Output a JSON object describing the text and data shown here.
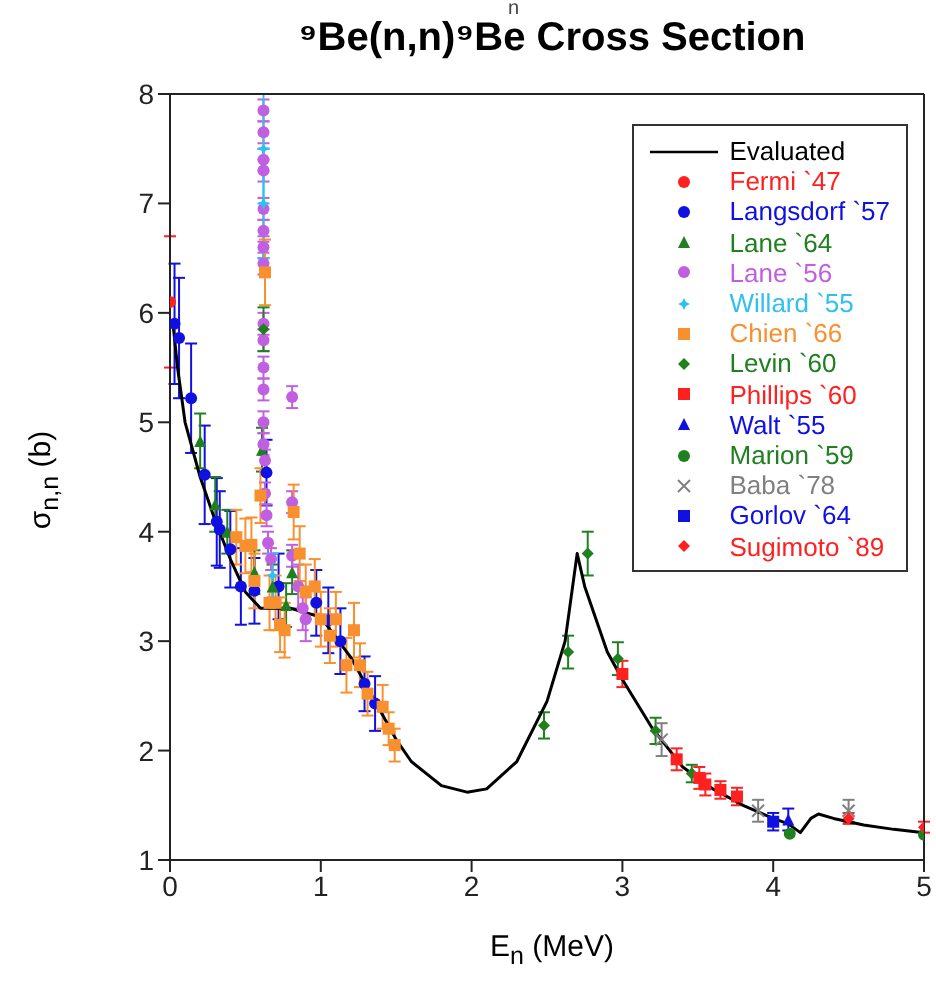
{
  "chart_data": {
    "type": "scatter",
    "title": "⁹Be(n,n)⁹Be Cross Section",
    "xlabel": "E$_{n}$ (MeV)",
    "ylabel": "σ$_{n,n}$ (b)",
    "annotations": [
      "n"
    ],
    "xlim": [
      0,
      5
    ],
    "ylim": [
      1,
      8
    ],
    "xticks": [
      0,
      1,
      2,
      3,
      4,
      5
    ],
    "yticks": [
      1,
      2,
      3,
      4,
      5,
      6,
      7,
      8
    ],
    "legend": "top right",
    "series": [
      {
        "name": "Evaluated",
        "type": "line",
        "color": "#000000",
        "marker": "none",
        "x": [
          0.02,
          0.05,
          0.1,
          0.2,
          0.3,
          0.4,
          0.5,
          0.6,
          0.8,
          1.0,
          1.2,
          1.4,
          1.5,
          1.6,
          1.8,
          1.97,
          2.1,
          2.3,
          2.5,
          2.62,
          2.7,
          2.75,
          2.9,
          3.0,
          3.2,
          3.4,
          3.6,
          3.8,
          4.0,
          4.1,
          4.18,
          4.25,
          4.3,
          4.4,
          4.6,
          4.8,
          5.0
        ],
        "values": [
          5.9,
          5.5,
          5.0,
          4.5,
          4.1,
          3.75,
          3.45,
          3.3,
          3.3,
          3.22,
          2.85,
          2.35,
          2.1,
          1.9,
          1.68,
          1.62,
          1.65,
          1.9,
          2.45,
          3.0,
          3.8,
          3.5,
          2.9,
          2.65,
          2.2,
          1.85,
          1.65,
          1.5,
          1.38,
          1.33,
          1.25,
          1.38,
          1.42,
          1.38,
          1.32,
          1.28,
          1.25
        ]
      },
      {
        "name": "Fermi `47",
        "color": "#ff2020",
        "marker": "circle",
        "x": [
          0.0
        ],
        "values": [
          6.1
        ],
        "errors": [
          0.6
        ]
      },
      {
        "name": "Langsdorf `57",
        "color": "#1010e0",
        "marker": "circle",
        "x": [
          0.03,
          0.06,
          0.14,
          0.23,
          0.31,
          0.33,
          0.4,
          0.47,
          0.56,
          0.64,
          0.72,
          0.97,
          1.05,
          1.13,
          1.29,
          1.36
        ],
        "values": [
          5.9,
          5.77,
          5.22,
          4.52,
          4.09,
          4.02,
          3.84,
          3.5,
          3.46,
          4.54,
          3.5,
          3.35,
          3.19,
          3.0,
          2.61,
          2.43
        ],
        "errors": [
          0.55,
          0.55,
          0.5,
          0.45,
          0.4,
          0.35,
          0.35,
          0.35,
          0.3,
          0.3,
          0.3,
          0.3,
          0.3,
          0.3,
          0.25,
          0.25
        ]
      },
      {
        "name": "Lane `64",
        "color": "#208020",
        "marker": "triangle",
        "x": [
          0.2,
          0.3,
          0.38,
          0.56,
          0.61,
          0.68,
          0.77,
          0.81
        ],
        "values": [
          4.83,
          4.25,
          4.0,
          3.63,
          4.75,
          3.5,
          3.33,
          3.63
        ],
        "errors": [
          0.25,
          0.25,
          0.2,
          0.2,
          0.2,
          0.2,
          0.2,
          0.2
        ]
      },
      {
        "name": "Lane `56",
        "color": "#c060e0",
        "marker": "circle",
        "x": [
          0.62,
          0.62,
          0.62,
          0.62,
          0.62,
          0.62,
          0.62,
          0.62,
          0.62,
          0.62,
          0.62,
          0.62,
          0.62,
          0.62,
          0.63,
          0.63,
          0.64,
          0.65,
          0.67,
          0.81,
          0.81,
          0.81,
          0.85,
          0.88,
          0.9
        ],
        "values": [
          7.85,
          7.65,
          7.4,
          7.3,
          6.95,
          6.75,
          6.6,
          6.45,
          5.9,
          5.75,
          5.5,
          5.3,
          5.0,
          4.8,
          4.65,
          4.35,
          4.15,
          3.9,
          3.75,
          5.23,
          4.27,
          3.78,
          3.5,
          3.3,
          3.2
        ],
        "errors": [
          0.1,
          0.1,
          0.1,
          0.1,
          0.1,
          0.1,
          0.1,
          0.1,
          0.1,
          0.1,
          0.1,
          0.1,
          0.1,
          0.1,
          0.1,
          0.1,
          0.1,
          0.1,
          0.1,
          0.1,
          0.1,
          0.1,
          0.2,
          0.2,
          0.2
        ]
      },
      {
        "name": "Willard `55",
        "color": "#30c0f0",
        "marker": "star",
        "x": [
          0.62,
          0.62,
          0.68
        ],
        "values": [
          7.5,
          7.0,
          3.6
        ],
        "errors": [
          0.5,
          0.5,
          0.2
        ]
      },
      {
        "name": "Chien `66",
        "color": "#f89030",
        "marker": "square",
        "x": [
          0.44,
          0.5,
          0.54,
          0.56,
          0.6,
          0.63,
          0.66,
          0.7,
          0.73,
          0.76,
          0.82,
          0.86,
          0.9,
          0.96,
          1.0,
          1.06,
          1.1,
          1.17,
          1.22,
          1.26,
          1.31,
          1.41,
          1.45,
          1.49
        ],
        "values": [
          3.95,
          3.87,
          3.88,
          3.55,
          4.33,
          6.37,
          3.35,
          3.35,
          3.15,
          3.1,
          4.18,
          3.8,
          3.45,
          3.5,
          3.2,
          3.05,
          3.2,
          2.78,
          3.1,
          2.78,
          2.52,
          2.4,
          2.2,
          2.05
        ],
        "errors": [
          0.25,
          0.25,
          0.25,
          0.25,
          0.25,
          0.3,
          0.25,
          0.25,
          0.25,
          0.25,
          0.25,
          0.25,
          0.25,
          0.25,
          0.25,
          0.25,
          0.25,
          0.25,
          0.25,
          0.2,
          0.2,
          0.2,
          0.15,
          0.15
        ]
      },
      {
        "name": "Levin `60",
        "color": "#208020",
        "marker": "diamond",
        "x": [
          0.62,
          2.48,
          2.64,
          2.77,
          2.97,
          3.22,
          3.46
        ],
        "values": [
          5.85,
          2.23,
          2.9,
          3.8,
          2.84,
          2.18,
          1.79
        ],
        "errors": [
          0.2,
          0.12,
          0.15,
          0.2,
          0.15,
          0.12,
          0.08
        ]
      },
      {
        "name": "Phillips `60",
        "color": "#ff2020",
        "marker": "square",
        "x": [
          3.0,
          3.36,
          3.51,
          3.55,
          3.65,
          3.76
        ],
        "values": [
          2.7,
          1.92,
          1.75,
          1.69,
          1.64,
          1.58
        ],
        "errors": [
          0.12,
          0.1,
          0.1,
          0.1,
          0.08,
          0.08
        ]
      },
      {
        "name": "Walt `55",
        "color": "#1010e0",
        "marker": "triangle",
        "x": [
          4.1
        ],
        "values": [
          1.37
        ],
        "errors": [
          0.1
        ]
      },
      {
        "name": "Marion `59",
        "color": "#208020",
        "marker": "circle",
        "x": [
          4.11,
          5.0
        ],
        "values": [
          1.24,
          1.23
        ]
      },
      {
        "name": "Baba `78",
        "color": "#808080",
        "marker": "cross",
        "x": [
          3.26,
          3.9,
          4.5
        ],
        "values": [
          2.1,
          1.45,
          1.45
        ],
        "errors": [
          0.15,
          0.1,
          0.1
        ]
      },
      {
        "name": "Gorlov `64",
        "color": "#1010e0",
        "marker": "square",
        "x": [
          4.0
        ],
        "values": [
          1.35
        ],
        "errors": [
          0.08
        ]
      },
      {
        "name": "Sugimoto `89",
        "color": "#ff2020",
        "marker": "diamond",
        "x": [
          4.5,
          5.0
        ],
        "values": [
          1.38,
          1.3
        ],
        "errors": [
          0.05,
          0.05
        ]
      }
    ]
  }
}
